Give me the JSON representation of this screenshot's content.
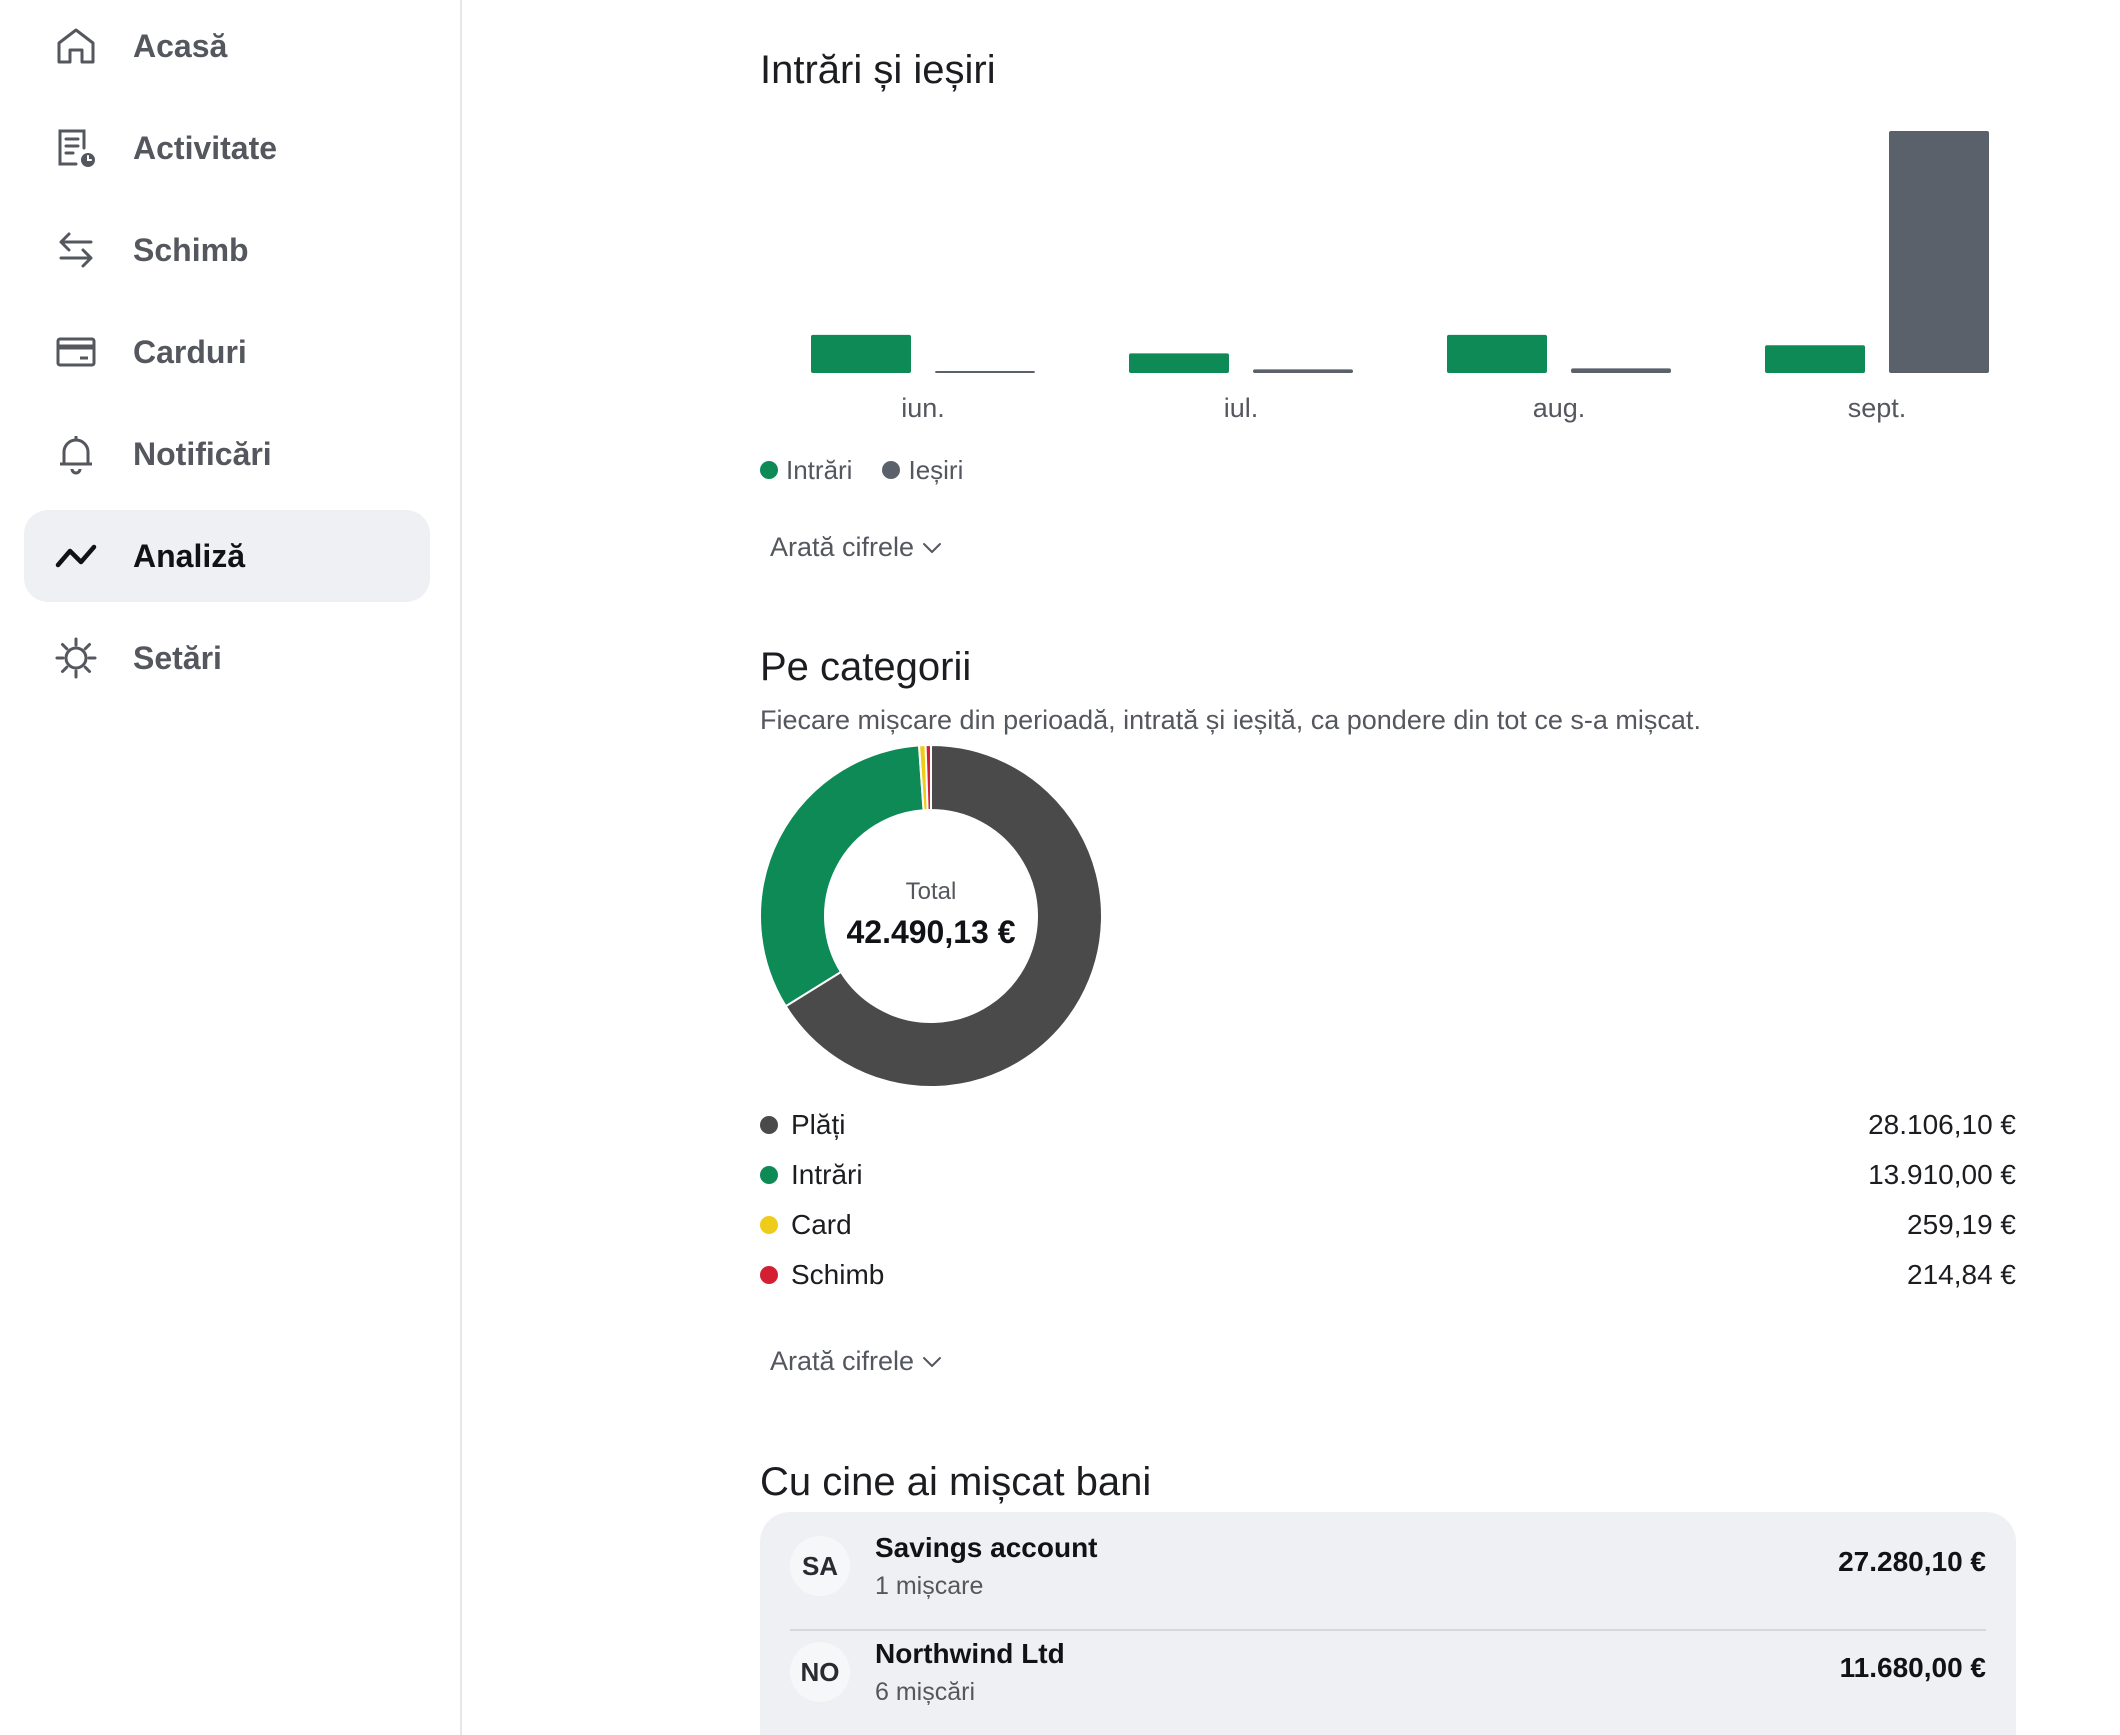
{
  "sidebar": {
    "items": [
      {
        "label": "Acasă",
        "icon": "home-icon"
      },
      {
        "label": "Activitate",
        "icon": "activity-icon"
      },
      {
        "label": "Schimb",
        "icon": "exchange-icon"
      },
      {
        "label": "Carduri",
        "icon": "card-icon"
      },
      {
        "label": "Notificări",
        "icon": "bell-icon"
      },
      {
        "label": "Analiză",
        "icon": "analytics-icon",
        "active": true
      },
      {
        "label": "Setări",
        "icon": "gear-icon"
      }
    ]
  },
  "flows": {
    "title": "Intrări și ieșiri",
    "legend": {
      "in": "Intrări",
      "out": "Ieșiri"
    },
    "toggle": "Arată cifrele"
  },
  "chart_data": [
    {
      "type": "bar",
      "title": "Intrări și ieșiri",
      "categories": [
        "iun.",
        "iul.",
        "aug.",
        "sept."
      ],
      "series": [
        {
          "name": "Intrări",
          "color": "#0e8a57",
          "values": [
            3700,
            1900,
            3700,
            2700
          ]
        },
        {
          "name": "Ieșiri",
          "color": "#5b616b",
          "values": [
            150,
            350,
            450,
            23500
          ]
        }
      ],
      "ylim": [
        0,
        23500
      ],
      "grid": false,
      "legend": "bottom-left"
    },
    {
      "type": "pie",
      "title": "Pe categorii",
      "donut": true,
      "center_label": "Total",
      "center_value": "42.490,13 €",
      "slices": [
        {
          "name": "Plăți",
          "value": 28106.1,
          "color": "#4a4a4a"
        },
        {
          "name": "Intrări",
          "value": 13910.0,
          "color": "#0e8a57"
        },
        {
          "name": "Card",
          "value": 259.19,
          "color": "#f0cc1a"
        },
        {
          "name": "Schimb",
          "value": 214.84,
          "color": "#d41f33"
        }
      ]
    }
  ],
  "categories": {
    "title": "Pe categorii",
    "subtitle": "Fiecare mișcare din perioadă, intrată și ieșită, ca pondere din tot ce s-a mișcat.",
    "total_label": "Total",
    "total_value": "42.490,13 €",
    "items": [
      {
        "name": "Plăți",
        "amount": "28.106,10 €",
        "color": "#4a4a4a"
      },
      {
        "name": "Intrări",
        "amount": "13.910,00 €",
        "color": "#0e8a57"
      },
      {
        "name": "Card",
        "amount": "259,19 €",
        "color": "#f0cc1a"
      },
      {
        "name": "Schimb",
        "amount": "214,84 €",
        "color": "#d41f33"
      }
    ],
    "toggle": "Arată cifrele"
  },
  "counterparties": {
    "title": "Cu cine ai mișcat bani",
    "items": [
      {
        "initials": "SA",
        "name": "Savings account",
        "count": "1 mișcare",
        "amount": "27.280,10 €"
      },
      {
        "initials": "NO",
        "name": "Northwind Ltd",
        "count": "6 mișcări",
        "amount": "11.680,00 €"
      }
    ]
  },
  "colors": {
    "accent_green": "#0e8a57",
    "slate": "#5b616b",
    "surface": "#eff0f3"
  }
}
